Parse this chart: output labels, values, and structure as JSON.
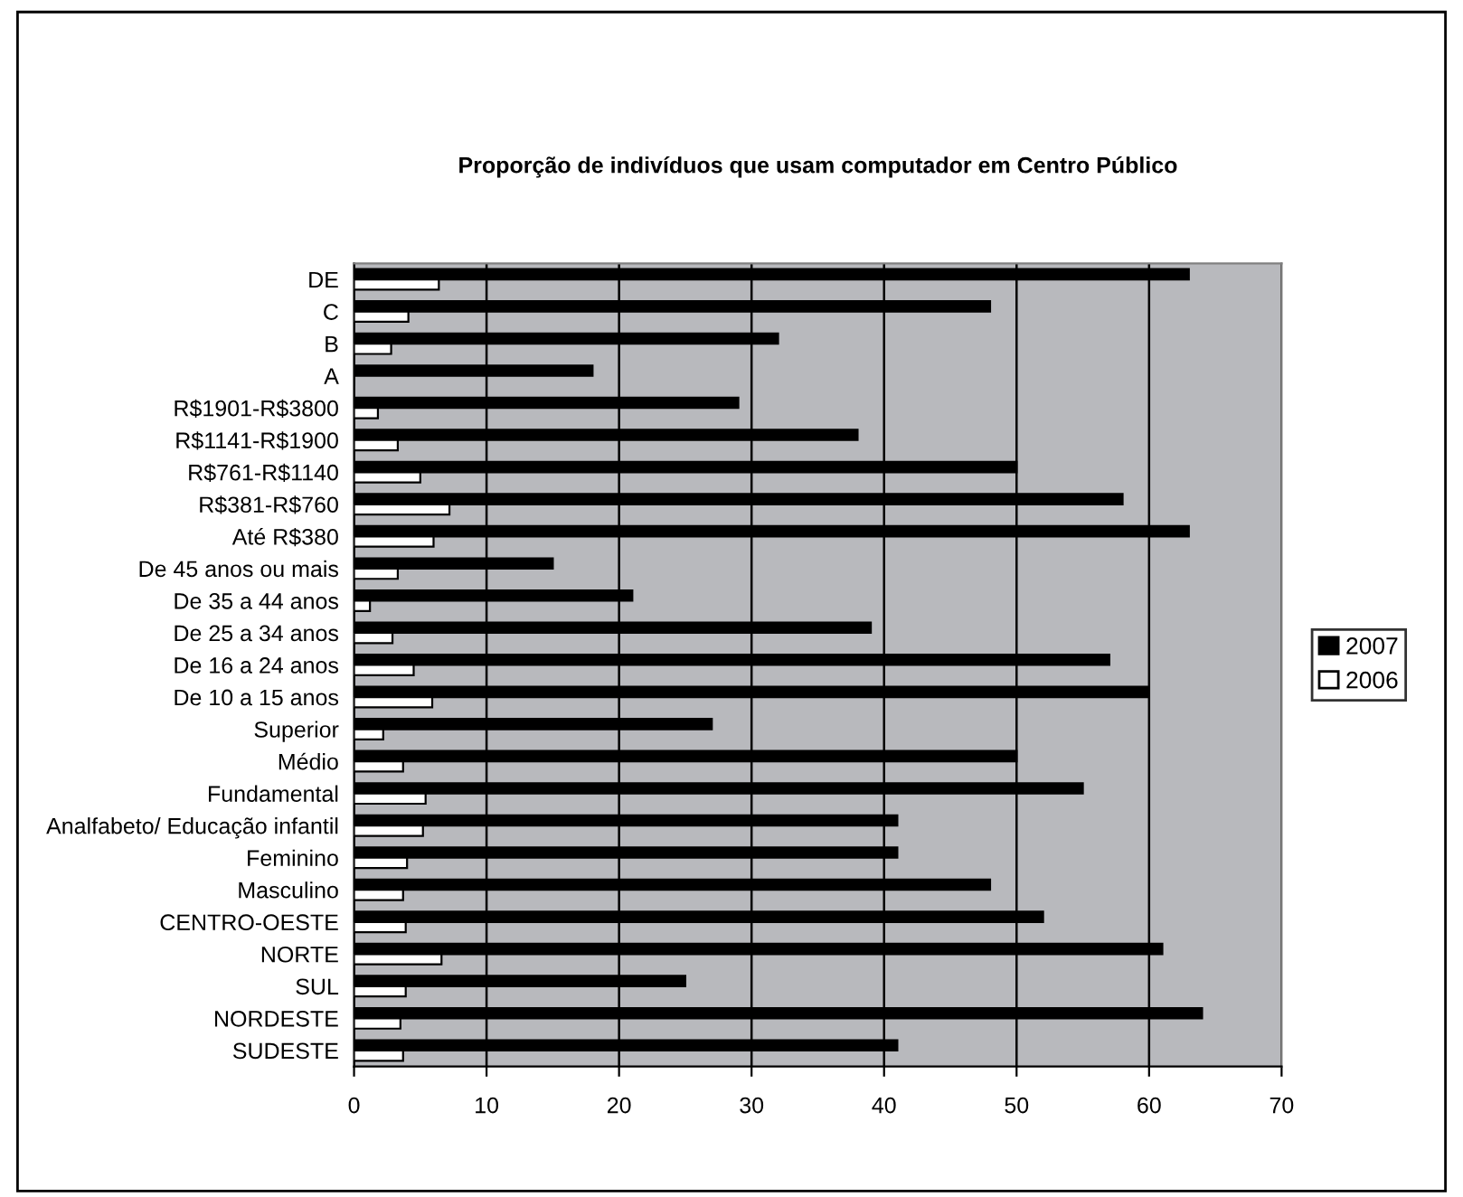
{
  "chart_data": {
    "type": "bar",
    "orientation": "horizontal",
    "title": "Proporção de indivíduos que usam computador em Centro Público",
    "categories": [
      "DE",
      "C",
      "B",
      "A",
      "R$1901-R$3800",
      "R$1141-R$1900",
      "R$761-R$1140",
      "R$381-R$760",
      "Até R$380",
      "De 45 anos ou mais",
      "De 35 a 44 anos",
      "De 25 a 34 anos",
      "De 16 a 24 anos",
      "De 10 a 15 anos",
      "Superior",
      "Médio",
      "Fundamental",
      "Analfabeto/ Educação infantil",
      "Feminino",
      "Masculino",
      "CENTRO-OESTE",
      "NORTE",
      "SUL",
      "NORDESTE",
      "SUDESTE"
    ],
    "series": [
      {
        "name": "2007",
        "color": "#000000",
        "values": [
          63,
          48,
          32,
          18,
          29,
          38,
          50,
          58,
          63,
          15,
          21,
          39,
          57,
          60,
          27,
          50,
          55,
          41,
          41,
          48,
          52,
          61,
          25,
          64,
          41
        ]
      },
      {
        "name": "2006",
        "color": "#ffffff",
        "values": [
          6.4,
          4.1,
          2.8,
          null,
          1.8,
          3.3,
          5.0,
          7.2,
          6.0,
          3.3,
          1.2,
          2.9,
          4.5,
          5.9,
          2.2,
          3.7,
          5.4,
          5.2,
          4.0,
          3.7,
          3.9,
          6.6,
          3.9,
          3.5,
          3.7
        ]
      }
    ],
    "xlim": [
      0,
      70
    ],
    "xticks": [
      0,
      10,
      20,
      30,
      40,
      50,
      60,
      70
    ],
    "grid": "x",
    "legend": "right"
  }
}
